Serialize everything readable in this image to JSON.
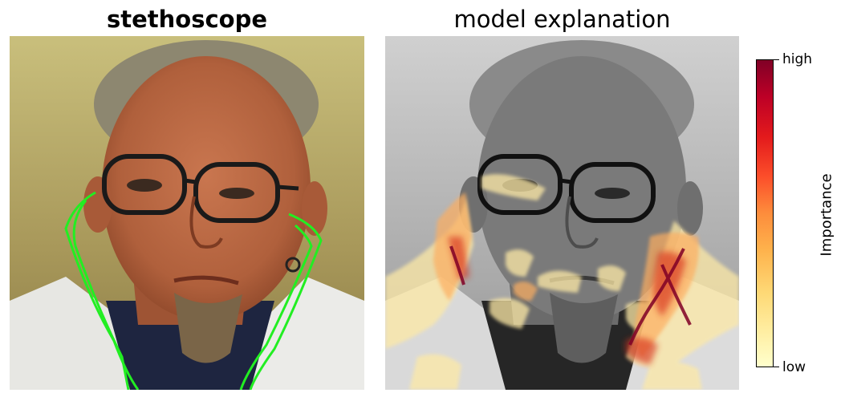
{
  "left_panel": {
    "title": "stethoscope",
    "image_subject": "photo-of-man-with-glasses-and-goatee",
    "outline_color": "#22ee22"
  },
  "right_panel": {
    "title": "model explanation",
    "image_subject": "grayscale-photo-with-importance-heatmap-overlay"
  },
  "colorbar": {
    "label": "Importance",
    "high_label": "high",
    "low_label": "low",
    "colormap": [
      "#ffffcc",
      "#ffeda0",
      "#fed976",
      "#feb24c",
      "#fd8d3c",
      "#fc4e2a",
      "#e31a1c",
      "#bd0026",
      "#800026"
    ]
  }
}
